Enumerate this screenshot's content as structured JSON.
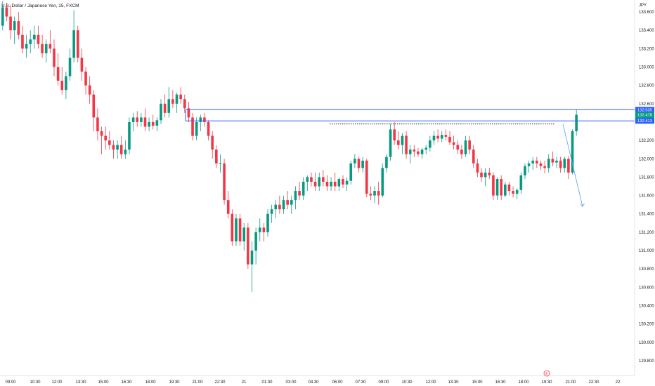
{
  "chart_data": {
    "type": "candlestick",
    "title": "U.S. Dollar / Japanese Yen, 15, FXCM",
    "currency": "JPY",
    "ylim": [
      129.7,
      133.78
    ],
    "y_ticks": [
      "133.600",
      "133.400",
      "133.200",
      "133.000",
      "132.800",
      "132.600",
      "132.400",
      "132.200",
      "132.000",
      "131.800",
      "131.600",
      "131.400",
      "131.200",
      "131.000",
      "130.800",
      "130.600",
      "130.400",
      "130.200",
      "130.000",
      "129.800"
    ],
    "x_ticks": [
      "09:00",
      "10:30",
      "12:00",
      "13:30",
      "15:00",
      "16:30",
      "18:00",
      "19:30",
      "21:00",
      "22:30",
      "21",
      "01:30",
      "03:00",
      "04:30",
      "06:00",
      "07:30",
      "09:00",
      "10:30",
      "12:00",
      "13:30",
      "15:00",
      "16:30",
      "18:00",
      "19:30",
      "21:00",
      "22:30",
      "22"
    ],
    "up_color": "#089981",
    "down_color": "#f23645",
    "zone": {
      "top": 132.535,
      "bottom": 132.413,
      "color": "#2962ff"
    },
    "dotted_level": 132.38,
    "projection_end": 131.48,
    "labels": [
      {
        "text": "132.535",
        "value": 132.535,
        "color": "#2962ff"
      },
      {
        "text": "132.478",
        "value": 132.478,
        "color": "#089981",
        "sub": "05:13"
      },
      {
        "text": "132.413",
        "value": 132.413,
        "color": "#2962ff"
      }
    ],
    "candles": [
      [
        133.45,
        133.72,
        133.4,
        133.65
      ],
      [
        133.65,
        133.7,
        133.5,
        133.55
      ],
      [
        133.55,
        133.68,
        133.3,
        133.4
      ],
      [
        133.4,
        133.55,
        133.25,
        133.5
      ],
      [
        133.5,
        133.6,
        133.3,
        133.35
      ],
      [
        133.35,
        133.45,
        133.15,
        133.2
      ],
      [
        133.2,
        133.35,
        133.1,
        133.25
      ],
      [
        133.25,
        133.4,
        133.15,
        133.3
      ],
      [
        133.3,
        133.45,
        133.2,
        133.35
      ],
      [
        133.35,
        133.45,
        133.2,
        133.25
      ],
      [
        133.25,
        133.35,
        133.1,
        133.15
      ],
      [
        133.15,
        133.3,
        133.05,
        133.25
      ],
      [
        133.25,
        133.4,
        133.15,
        133.2
      ],
      [
        133.2,
        133.3,
        132.9,
        133.0
      ],
      [
        133.0,
        133.15,
        132.8,
        132.85
      ],
      [
        132.85,
        133.0,
        132.7,
        132.75
      ],
      [
        132.75,
        132.95,
        132.65,
        132.9
      ],
      [
        132.9,
        133.2,
        132.85,
        133.1
      ],
      [
        133.1,
        133.62,
        133.05,
        133.4
      ],
      [
        133.4,
        133.45,
        133.05,
        133.1
      ],
      [
        133.1,
        133.2,
        132.85,
        132.95
      ],
      [
        132.95,
        133.0,
        132.7,
        132.8
      ],
      [
        132.8,
        132.9,
        132.6,
        132.7
      ],
      [
        132.7,
        132.75,
        132.3,
        132.45
      ],
      [
        132.45,
        132.55,
        132.2,
        132.3
      ],
      [
        132.3,
        132.35,
        132.05,
        132.25
      ],
      [
        132.25,
        132.35,
        132.1,
        132.2
      ],
      [
        132.2,
        132.3,
        132.1,
        132.15
      ],
      [
        132.15,
        132.2,
        132.0,
        132.1
      ],
      [
        132.1,
        132.2,
        132.0,
        132.15
      ],
      [
        132.15,
        132.25,
        132.0,
        132.05
      ],
      [
        132.05,
        132.2,
        132.0,
        132.1
      ],
      [
        132.1,
        132.45,
        132.05,
        132.4
      ],
      [
        132.4,
        132.5,
        132.3,
        132.45
      ],
      [
        132.45,
        132.52,
        132.35,
        132.4
      ],
      [
        132.4,
        132.5,
        132.35,
        132.45
      ],
      [
        132.45,
        132.55,
        132.3,
        132.35
      ],
      [
        132.35,
        132.45,
        132.3,
        132.4
      ],
      [
        132.4,
        132.48,
        132.32,
        132.36
      ],
      [
        132.36,
        132.45,
        132.3,
        132.42
      ],
      [
        132.42,
        132.65,
        132.38,
        132.6
      ],
      [
        132.6,
        132.7,
        132.45,
        132.5
      ],
      [
        132.5,
        132.78,
        132.45,
        132.65
      ],
      [
        132.65,
        132.75,
        132.55,
        132.6
      ],
      [
        132.6,
        132.72,
        132.5,
        132.7
      ],
      [
        132.7,
        132.78,
        132.6,
        132.65
      ],
      [
        132.65,
        132.7,
        132.5,
        132.55
      ],
      [
        132.55,
        132.62,
        132.4,
        132.45
      ],
      [
        132.45,
        132.5,
        132.2,
        132.25
      ],
      [
        132.25,
        132.45,
        132.2,
        132.4
      ],
      [
        132.4,
        132.48,
        132.3,
        132.45
      ],
      [
        132.45,
        132.5,
        132.35,
        132.4
      ],
      [
        132.4,
        132.42,
        132.2,
        132.25
      ],
      [
        132.25,
        132.3,
        132.0,
        132.1
      ],
      [
        132.1,
        132.15,
        131.9,
        131.95
      ],
      [
        131.95,
        132.05,
        131.85,
        131.95
      ],
      [
        131.95,
        132.0,
        131.5,
        131.55
      ],
      [
        131.55,
        131.65,
        131.35,
        131.4
      ],
      [
        131.4,
        131.45,
        131.05,
        131.1
      ],
      [
        131.1,
        131.4,
        131.05,
        131.35
      ],
      [
        131.35,
        131.4,
        131.05,
        131.1
      ],
      [
        131.1,
        131.3,
        131.0,
        131.25
      ],
      [
        131.25,
        131.3,
        130.8,
        130.85
      ],
      [
        130.85,
        131.1,
        130.55,
        131.0
      ],
      [
        131.0,
        131.25,
        130.85,
        131.2
      ],
      [
        131.2,
        131.35,
        131.1,
        131.25
      ],
      [
        131.25,
        131.3,
        131.1,
        131.2
      ],
      [
        131.2,
        131.45,
        131.15,
        131.4
      ],
      [
        131.4,
        131.5,
        131.3,
        131.45
      ],
      [
        131.45,
        131.55,
        131.35,
        131.5
      ],
      [
        131.5,
        131.6,
        131.4,
        131.45
      ],
      [
        131.45,
        131.6,
        131.4,
        131.55
      ],
      [
        131.55,
        131.65,
        131.45,
        131.5
      ],
      [
        131.5,
        131.6,
        131.4,
        131.55
      ],
      [
        131.55,
        131.7,
        131.45,
        131.65
      ],
      [
        131.65,
        131.75,
        131.55,
        131.6
      ],
      [
        131.6,
        131.8,
        131.55,
        131.75
      ],
      [
        131.75,
        131.82,
        131.65,
        131.8
      ],
      [
        131.8,
        131.85,
        131.7,
        131.75
      ],
      [
        131.75,
        131.85,
        131.65,
        131.7
      ],
      [
        131.7,
        131.85,
        131.65,
        131.8
      ],
      [
        131.8,
        131.88,
        131.7,
        131.75
      ],
      [
        131.75,
        131.82,
        131.65,
        131.7
      ],
      [
        131.7,
        131.8,
        131.65,
        131.75
      ],
      [
        131.75,
        131.85,
        131.65,
        131.7
      ],
      [
        131.7,
        131.8,
        131.65,
        131.78
      ],
      [
        131.78,
        131.82,
        131.68,
        131.72
      ],
      [
        131.72,
        131.8,
        131.65,
        131.76
      ],
      [
        131.76,
        131.98,
        131.72,
        131.95
      ],
      [
        131.95,
        132.05,
        131.9,
        132.0
      ],
      [
        132.0,
        132.02,
        131.85,
        131.9
      ],
      [
        131.9,
        132.02,
        131.85,
        131.98
      ],
      [
        131.98,
        132.0,
        131.58,
        131.62
      ],
      [
        131.62,
        131.7,
        131.55,
        131.6
      ],
      [
        131.6,
        131.7,
        131.52,
        131.65
      ],
      [
        131.65,
        131.75,
        131.5,
        131.6
      ],
      [
        131.6,
        131.95,
        131.58,
        131.9
      ],
      [
        131.9,
        132.05,
        131.85,
        132.02
      ],
      [
        132.02,
        132.38,
        131.98,
        132.32
      ],
      [
        132.32,
        132.4,
        132.15,
        132.2
      ],
      [
        132.2,
        132.3,
        132.1,
        132.15
      ],
      [
        132.15,
        132.28,
        132.05,
        132.25
      ],
      [
        132.25,
        132.3,
        132.0,
        132.05
      ],
      [
        132.05,
        132.15,
        131.95,
        132.1
      ],
      [
        132.1,
        132.15,
        132.02,
        132.08
      ],
      [
        132.08,
        132.12,
        132.02,
        132.05
      ],
      [
        132.05,
        132.12,
        132.0,
        132.1
      ],
      [
        132.1,
        132.15,
        132.05,
        132.12
      ],
      [
        132.12,
        132.25,
        132.08,
        132.2
      ],
      [
        132.2,
        132.3,
        132.15,
        132.25
      ],
      [
        132.25,
        132.32,
        132.18,
        132.22
      ],
      [
        132.22,
        132.3,
        132.18,
        132.26
      ],
      [
        132.26,
        132.32,
        132.2,
        132.24
      ],
      [
        132.24,
        132.3,
        132.15,
        132.18
      ],
      [
        132.18,
        132.25,
        132.1,
        132.15
      ],
      [
        132.15,
        132.2,
        132.05,
        132.1
      ],
      [
        132.1,
        132.15,
        132.0,
        132.05
      ],
      [
        132.05,
        132.25,
        132.02,
        132.2
      ],
      [
        132.2,
        132.25,
        132.05,
        132.1
      ],
      [
        132.1,
        132.15,
        131.9,
        131.95
      ],
      [
        131.95,
        132.0,
        131.8,
        131.85
      ],
      [
        131.85,
        131.9,
        131.75,
        131.8
      ],
      [
        131.8,
        131.9,
        131.7,
        131.85
      ],
      [
        131.85,
        131.9,
        131.78,
        131.82
      ],
      [
        131.82,
        131.85,
        131.55,
        131.6
      ],
      [
        131.6,
        131.8,
        131.55,
        131.78
      ],
      [
        131.78,
        131.82,
        131.55,
        131.6
      ],
      [
        131.6,
        131.75,
        131.58,
        131.72
      ],
      [
        131.72,
        131.75,
        131.6,
        131.65
      ],
      [
        131.65,
        131.7,
        131.58,
        131.62
      ],
      [
        131.62,
        131.68,
        131.56,
        131.66
      ],
      [
        131.66,
        131.85,
        131.62,
        131.82
      ],
      [
        131.82,
        131.95,
        131.78,
        131.92
      ],
      [
        131.92,
        131.98,
        131.85,
        131.95
      ],
      [
        131.95,
        132.02,
        131.88,
        131.98
      ],
      [
        131.98,
        132.02,
        131.9,
        131.95
      ],
      [
        131.95,
        131.98,
        131.88,
        131.92
      ],
      [
        131.92,
        131.98,
        131.84,
        131.9
      ],
      [
        131.9,
        132.05,
        131.85,
        132.0
      ],
      [
        132.0,
        132.08,
        131.92,
        131.96
      ],
      [
        131.96,
        132.02,
        131.9,
        131.98
      ],
      [
        131.98,
        132.02,
        131.85,
        131.9
      ],
      [
        131.9,
        132.02,
        131.85,
        132.0
      ],
      [
        132.0,
        132.03,
        131.78,
        131.85
      ],
      [
        131.85,
        132.32,
        131.83,
        132.3
      ],
      [
        132.3,
        132.54,
        132.25,
        132.48
      ]
    ]
  }
}
